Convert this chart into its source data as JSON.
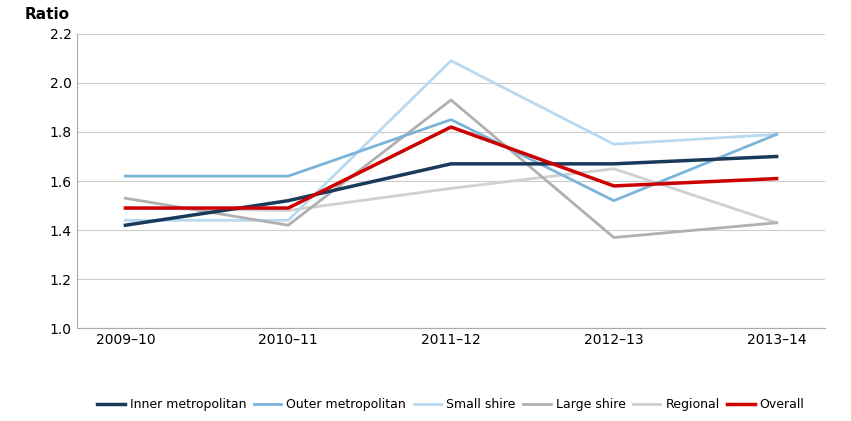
{
  "x_labels": [
    "2009–10",
    "2010–11",
    "2011–12",
    "2012–13",
    "2013–14"
  ],
  "x_positions": [
    0,
    1,
    2,
    3,
    4
  ],
  "series": {
    "Inner metropolitan": {
      "values": [
        1.42,
        1.52,
        1.67,
        1.67,
        1.7
      ],
      "color": "#1a3a5c",
      "linewidth": 2.5,
      "zorder": 5
    },
    "Outer metropolitan": {
      "values": [
        1.62,
        1.62,
        1.85,
        1.52,
        1.79
      ],
      "color": "#7ab4d8",
      "linewidth": 2.0,
      "zorder": 4
    },
    "Small shire": {
      "values": [
        1.44,
        1.44,
        2.09,
        1.75,
        1.79
      ],
      "color": "#b8d9f0",
      "linewidth": 2.0,
      "zorder": 3
    },
    "Large shire": {
      "values": [
        1.53,
        1.42,
        1.93,
        1.37,
        1.43
      ],
      "color": "#b0b0b0",
      "linewidth": 2.0,
      "zorder": 3
    },
    "Regional": {
      "values": [
        1.49,
        1.48,
        1.57,
        1.65,
        1.43
      ],
      "color": "#d0d0d0",
      "linewidth": 2.0,
      "zorder": 2
    },
    "Overall": {
      "values": [
        1.49,
        1.49,
        1.82,
        1.58,
        1.61
      ],
      "color": "#cc0000",
      "linewidth": 2.5,
      "zorder": 6
    }
  },
  "ratio_label": "Ratio",
  "ylim": [
    1.0,
    2.2
  ],
  "yticks": [
    1.0,
    1.2,
    1.4,
    1.6,
    1.8,
    2.0,
    2.2
  ],
  "legend_order": [
    "Inner metropolitan",
    "Outer metropolitan",
    "Small shire",
    "Large shire",
    "Regional",
    "Overall"
  ],
  "background_color": "#ffffff",
  "grid_color": "#cccccc",
  "spine_color": "#aaaaaa"
}
